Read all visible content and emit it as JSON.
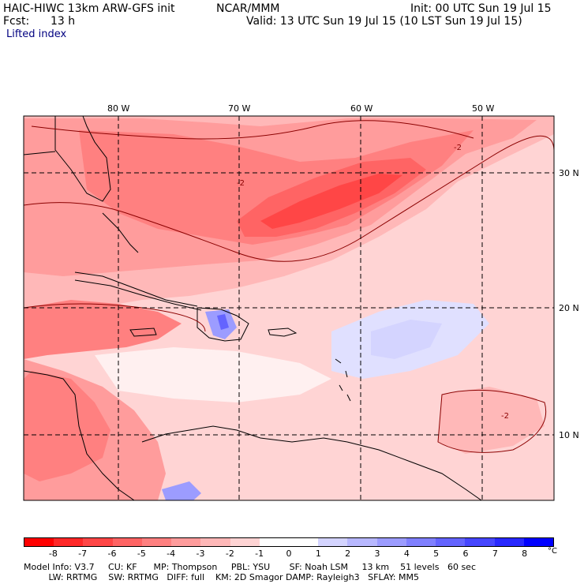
{
  "header": {
    "model_title": "HAIC-HIWC 13km ARW-GFS init",
    "org": "NCAR/MMM",
    "init": "Init: 00 UTC Sun 19 Jul 15",
    "fcst_label": "Fcst:",
    "fcst_value": "13 h",
    "valid": "Valid: 13 UTC Sun 19 Jul 15 (10 LST Sun 19 Jul 15)",
    "field_name": "Lifted index"
  },
  "map": {
    "lon_labels": [
      "80 W",
      "70 W",
      "60 W",
      "50 W"
    ],
    "lat_labels": [
      "30 N",
      "20 N",
      "10 N"
    ],
    "contour_label": "-2"
  },
  "colorbar": {
    "ticks": [
      "-8",
      "-7",
      "-6",
      "-5",
      "-4",
      "-3",
      "-2",
      "-1",
      "0",
      "1",
      "2",
      "3",
      "4",
      "5",
      "6",
      "7",
      "8"
    ],
    "unit": "°C",
    "colors": [
      "#ff0000",
      "#ff2828",
      "#ff4646",
      "#ff6464",
      "#ff8080",
      "#ff9c9c",
      "#ffb8b8",
      "#ffd4d4",
      "#ffffff",
      "#ffffff",
      "#d4d4ff",
      "#b8b8ff",
      "#9c9cff",
      "#8080ff",
      "#6464ff",
      "#4646ff",
      "#2828ff",
      "#0000ff"
    ]
  },
  "footer": {
    "line1": "Model Info: V3.7     CU: KF      MP: Thompson     PBL: YSU       SF: Noah LSM     13 km    51 levels   60 sec",
    "line2": "         LW: RRTMG    SW: RRTMG   DIFF: full    KM: 2D Smagor DAMP: Rayleigh3   SFLAY: MM5"
  }
}
